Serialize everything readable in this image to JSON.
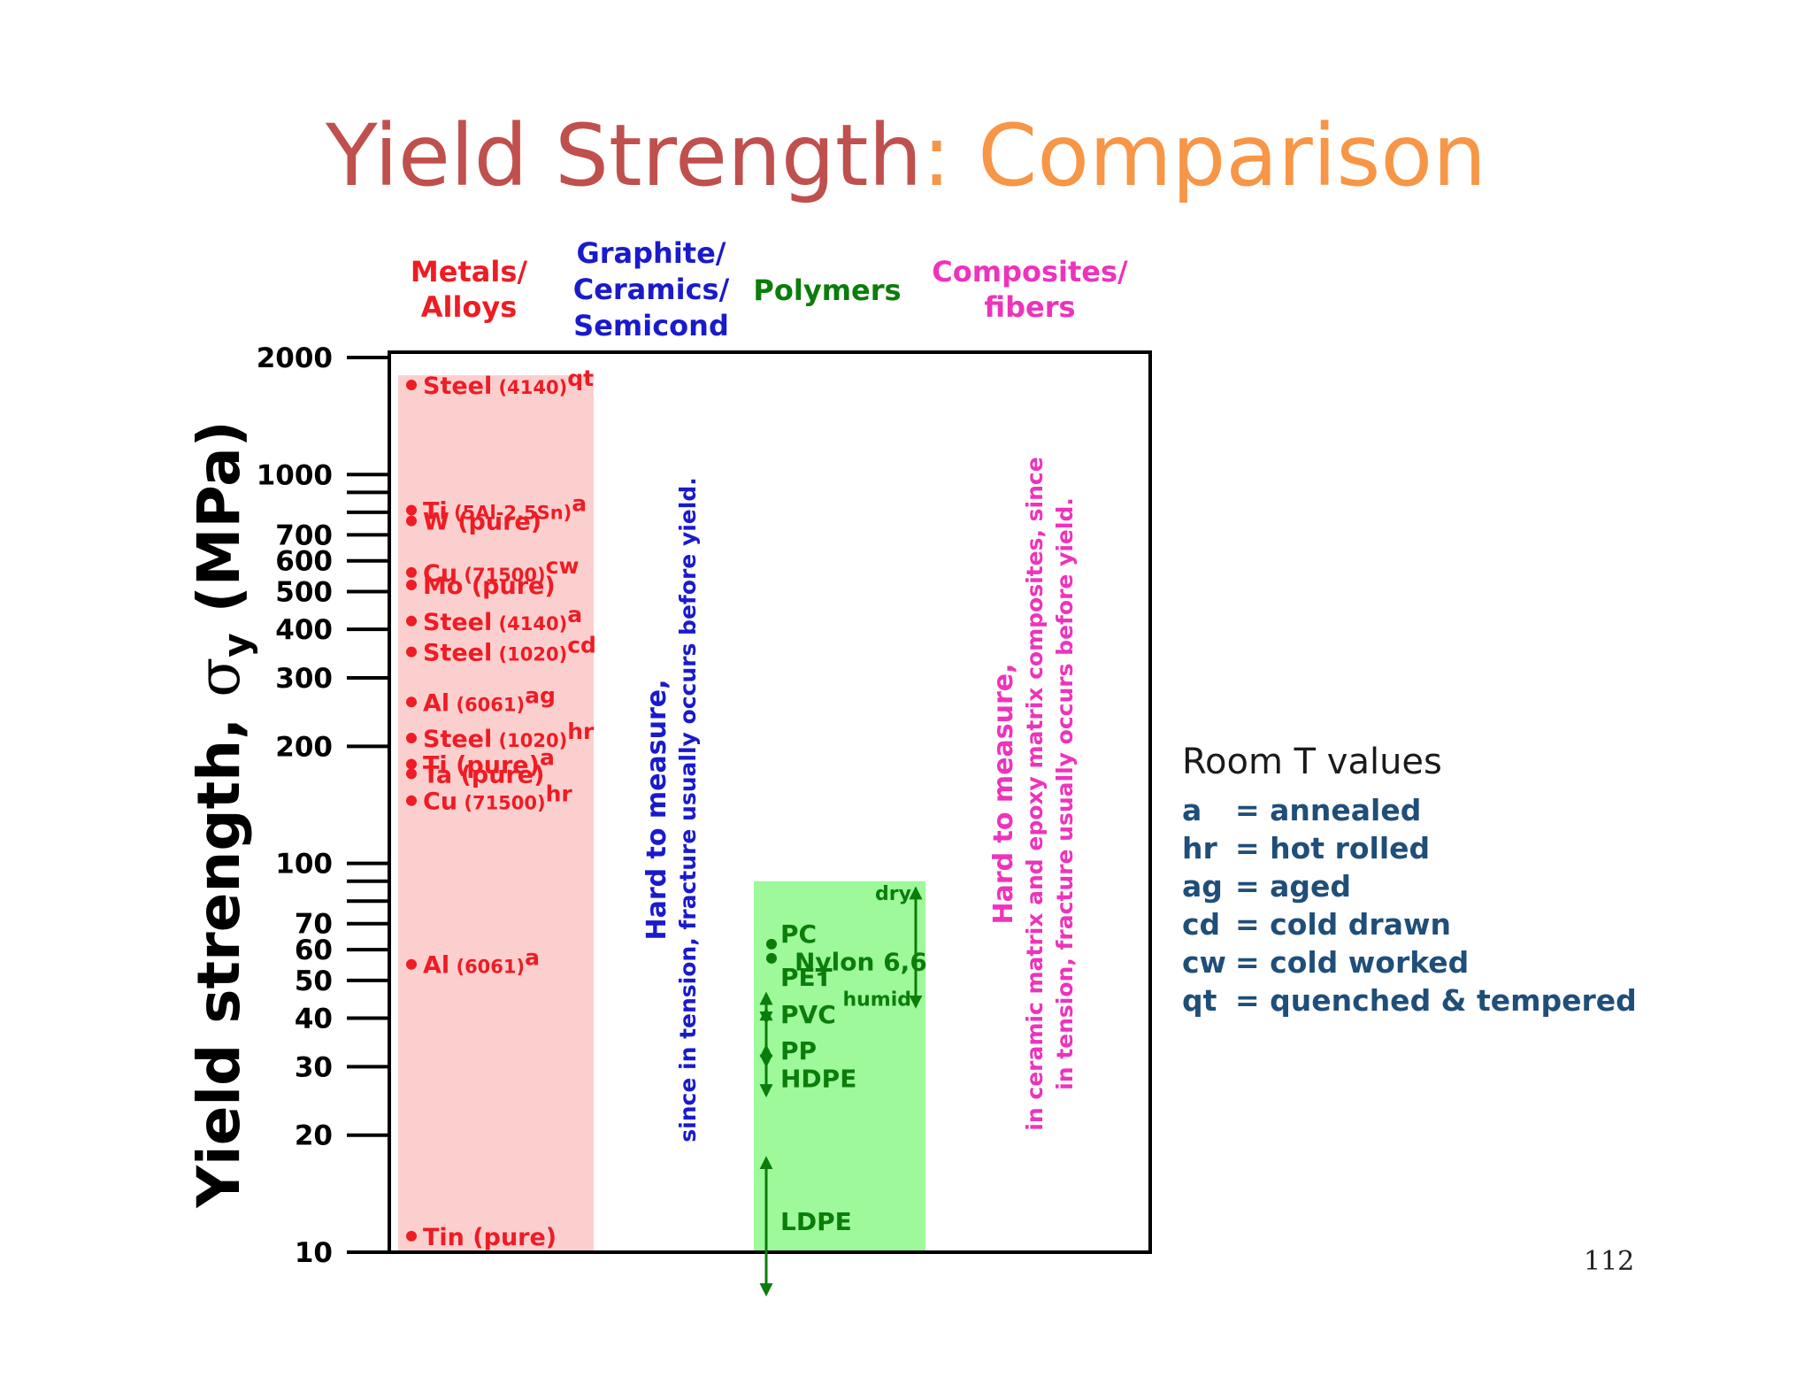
{
  "title": {
    "part1": "Yield Strength",
    "part2": ": Comparison"
  },
  "page_number": "112",
  "legend": {
    "title": "Room T values",
    "items": [
      {
        "abbr": "a",
        "def": "= annealed"
      },
      {
        "abbr": "hr",
        "def": "= hot rolled"
      },
      {
        "abbr": "ag",
        "def": "= aged"
      },
      {
        "abbr": "cd",
        "def": "= cold drawn"
      },
      {
        "abbr": "cw",
        "def": "= cold worked"
      },
      {
        "abbr": "qt",
        "def": "= quenched & tempered"
      }
    ]
  },
  "colors": {
    "metals": "#ee1c24",
    "metals_band": "#fccfcf",
    "ceramics": "#1a1acd",
    "polymers": "#0a7d0a",
    "polymers_band": "#9ef99a",
    "composites": "#ee33bb",
    "title_part1": "#c0504d",
    "title_part2": "#f79646",
    "legend_text": "#1f4e79"
  },
  "chart_data": {
    "type": "scatter",
    "y_scale": "log",
    "ylim": [
      10,
      2000
    ],
    "ylabel_main": "Yield strength, ",
    "ylabel_sym": "σ",
    "ylabel_sub": "y",
    "ylabel_unit": " (MPa)",
    "y_ticks": [
      {
        "v": 10,
        "label": "10"
      },
      {
        "v": 20,
        "label": "20"
      },
      {
        "v": 30,
        "label": "30"
      },
      {
        "v": 40,
        "label": "40"
      },
      {
        "v": 50,
        "label": "50"
      },
      {
        "v": 60,
        "label": "60"
      },
      {
        "v": 70,
        "label": "70"
      },
      {
        "v": 80,
        "label": ""
      },
      {
        "v": 90,
        "label": ""
      },
      {
        "v": 100,
        "label": "100"
      },
      {
        "v": 200,
        "label": "200"
      },
      {
        "v": 300,
        "label": "300"
      },
      {
        "v": 400,
        "label": "400"
      },
      {
        "v": 500,
        "label": "500"
      },
      {
        "v": 600,
        "label": "600"
      },
      {
        "v": 700,
        "label": "700"
      },
      {
        "v": 800,
        "label": ""
      },
      {
        "v": 900,
        "label": ""
      },
      {
        "v": 1000,
        "label": "1000"
      },
      {
        "v": 2000,
        "label": "2000"
      }
    ],
    "categories": [
      {
        "key": "metals",
        "lines": [
          "Metals/",
          "Alloys"
        ]
      },
      {
        "key": "ceramics",
        "lines": [
          "Graphite/",
          "Ceramics/",
          "Semicond"
        ]
      },
      {
        "key": "polymers",
        "lines": [
          "Polymers"
        ]
      },
      {
        "key": "composites",
        "lines": [
          "Composites/",
          "fibers"
        ]
      }
    ],
    "ceramics_note": [
      "Hard to measure,",
      "since in tension, fracture usually occurs before yield."
    ],
    "composites_note": [
      "Hard to measure,",
      "in ceramic matrix and epoxy matrix composites, since",
      "in tension, fracture usually occurs before yield."
    ],
    "metals": [
      {
        "name": "Steel",
        "spec": "(4140)",
        "sup": "qt",
        "value": 1700
      },
      {
        "name": "Ti",
        "spec": "(5Al-2.5Sn)",
        "sup": "a",
        "value": 810
      },
      {
        "name": "W (pure)",
        "spec": "",
        "sup": "",
        "value": 760
      },
      {
        "name": "Cu",
        "spec": "(71500)",
        "sup": "cw",
        "value": 560
      },
      {
        "name": "Mo (pure)",
        "spec": "",
        "sup": "",
        "value": 520
      },
      {
        "name": "Steel",
        "spec": "(4140)",
        "sup": "a",
        "value": 420
      },
      {
        "name": "Steel",
        "spec": "(1020)",
        "sup": "cd",
        "value": 350
      },
      {
        "name": "Al",
        "spec": "(6061)",
        "sup": "ag",
        "value": 260
      },
      {
        "name": "Steel",
        "spec": "(1020)",
        "sup": "hr",
        "value": 210
      },
      {
        "name": "Ti (pure)",
        "spec": "",
        "sup": "a",
        "value": 180
      },
      {
        "name": "Ta (pure)",
        "spec": "",
        "sup": "",
        "value": 170
      },
      {
        "name": "Cu",
        "spec": "(71500)",
        "sup": "hr",
        "value": 145
      },
      {
        "name": "Al",
        "spec": "(6061)",
        "sup": "a",
        "value": 55
      },
      {
        "name": "Tin (pure)",
        "spec": "",
        "sup": "",
        "value": 11
      }
    ],
    "polymer_points": [
      {
        "name": "PC",
        "value": 62
      },
      {
        "name": "PET",
        "value": 57
      }
    ],
    "polymer_labels": [
      {
        "name": "PC",
        "value": 66
      },
      {
        "name": "Nylon 6,6",
        "value": 56
      },
      {
        "name": "PET",
        "value": 51
      },
      {
        "name": "PVC",
        "value": 41
      },
      {
        "name": "PP",
        "value": 33
      },
      {
        "name": "HDPE",
        "value": 28
      },
      {
        "name": "LDPE",
        "value": 12
      }
    ],
    "polymer_ranges": [
      {
        "name": "PVC",
        "low": 40,
        "high": 45
      },
      {
        "name": "PP",
        "low": 31,
        "high": 41
      },
      {
        "name": "HDPE",
        "low": 26,
        "high": 33
      },
      {
        "name": "LDPE",
        "low": 8,
        "high": 17
      }
    ],
    "nylon_range": {
      "low": "humid",
      "high": "dry",
      "low_value": 44,
      "high_value": 84
    },
    "bands": [
      {
        "key": "metals",
        "low": 10,
        "high": 1800
      },
      {
        "key": "polymers",
        "low": 10,
        "high": 90
      }
    ]
  }
}
